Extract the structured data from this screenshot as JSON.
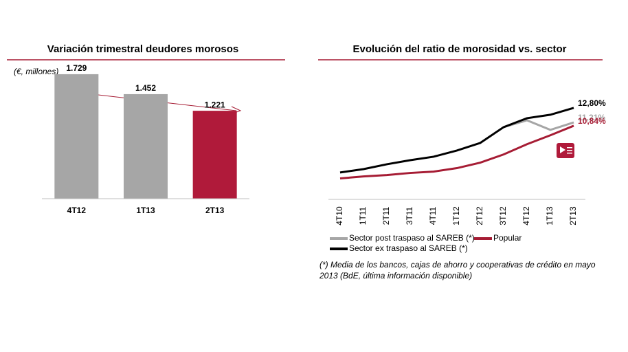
{
  "chart_data": [
    {
      "type": "bar",
      "title": "Variación trimestral deudores  morosos",
      "subtitle": "(€, millones)",
      "categories": [
        "4T12",
        "1T13",
        "2T13"
      ],
      "values": [
        1729,
        1452,
        1221
      ],
      "value_labels": [
        "1.729",
        "1.452",
        "1.221"
      ],
      "colors": [
        "#a6a6a6",
        "#a6a6a6",
        "#b01a3a"
      ],
      "ylim": [
        0,
        1900
      ]
    },
    {
      "type": "line",
      "title": "Evolución del ratio de morosidad vs. sector",
      "categories": [
        "4T10",
        "1T11",
        "2T11",
        "3T11",
        "4T11",
        "1T12",
        "2T12",
        "3T12",
        "4T12",
        "1T13",
        "2T13"
      ],
      "series": [
        {
          "name": "Sector post traspaso al SAREB (*)",
          "color": "#a6a6a6",
          "values": [
            null,
            null,
            null,
            null,
            null,
            null,
            null,
            10.69,
            11.44,
            10.39,
            11.21
          ],
          "value_labels": [
            null,
            null,
            null,
            null,
            null,
            null,
            null,
            null,
            null,
            null,
            "11,21%"
          ]
        },
        {
          "name": "Popular",
          "color": "#a61c34",
          "values": [
            5.07,
            5.29,
            5.44,
            5.67,
            5.82,
            6.2,
            6.8,
            7.7,
            8.82,
            9.8,
            10.84
          ],
          "value_labels": [
            null,
            null,
            null,
            null,
            null,
            null,
            null,
            null,
            null,
            null,
            "10,84%"
          ]
        },
        {
          "name": "Sector ex traspaso al SAREB (*)",
          "color": "#000000",
          "values": [
            5.72,
            6.09,
            6.62,
            7.07,
            7.45,
            8.13,
            8.96,
            10.69,
            11.67,
            12.05,
            12.8
          ],
          "value_labels": [
            null,
            null,
            null,
            null,
            null,
            null,
            null,
            null,
            null,
            null,
            "12,80%"
          ]
        }
      ],
      "ylim": [
        3,
        14
      ],
      "footnote": [
        "(*) Media de los bancos, cajas de ahorro y cooperativas de crédito en mayo",
        "2013 (BdE, última información disponible)"
      ]
    }
  ]
}
